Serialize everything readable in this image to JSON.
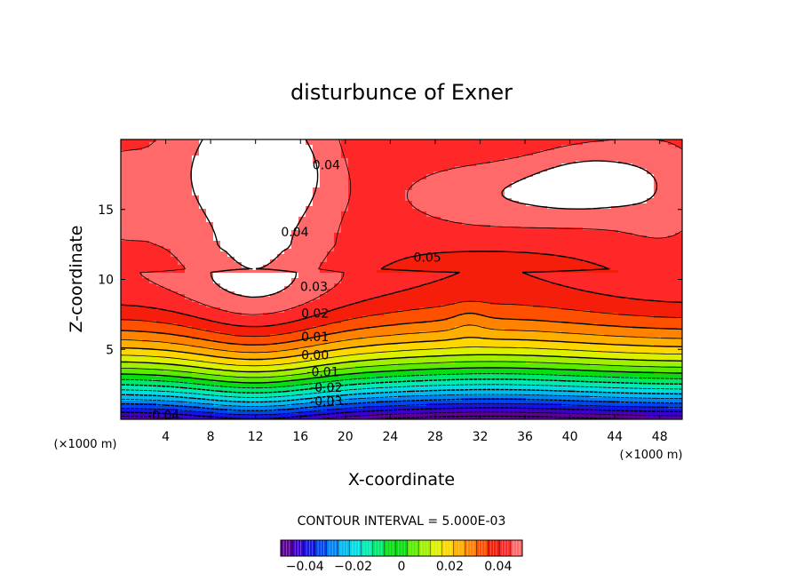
{
  "chart_data": {
    "type": "heatmap",
    "title": "disturbunce of Exner",
    "xlabel": "X-coordinate",
    "ylabel": "Z-coordinate",
    "x_unit": "(×1000 m)",
    "y_unit": "(×1000 m)",
    "xlim": [
      0,
      50
    ],
    "ylim": [
      0,
      20
    ],
    "x_ticks": [
      4,
      8,
      12,
      16,
      20,
      24,
      28,
      32,
      36,
      40,
      44,
      48
    ],
    "y_ticks": [
      5,
      10,
      15
    ],
    "contour_interval_text": "CONTOUR INTERVAL = 5.000E-03",
    "contour_interval": 0.005,
    "value_range": [
      -0.05,
      0.05
    ],
    "white_region": {
      "description_value": "> 0.05"
    },
    "contour_labels": [
      {
        "text": "0.04",
        "x": 18.3,
        "z": 18.2
      },
      {
        "text": "0.04",
        "x": 15.5,
        "z": 13.4
      },
      {
        "text": "0.05",
        "x": 27.3,
        "z": 11.6
      },
      {
        "text": "0.03",
        "x": 17.2,
        "z": 9.5
      },
      {
        "text": "0.02",
        "x": 17.3,
        "z": 7.6
      },
      {
        "text": "0.01",
        "x": 17.3,
        "z": 5.9
      },
      {
        "text": "0.00",
        "x": 17.3,
        "z": 4.6
      },
      {
        "text": "-0.01",
        "x": 18.0,
        "z": 3.4
      },
      {
        "text": "-0.02",
        "x": 18.3,
        "z": 2.3
      },
      {
        "text": "-0.03",
        "x": 18.3,
        "z": 1.3
      },
      {
        "text": "-0.04",
        "x": 3.8,
        "z": 0.3
      }
    ],
    "colorbar": {
      "ticks": [
        -0.04,
        -0.02,
        0,
        0.02,
        0.04
      ],
      "tick_labels": [
        "−0.04",
        "−0.02",
        "0",
        "0.02",
        "0.04"
      ]
    }
  }
}
